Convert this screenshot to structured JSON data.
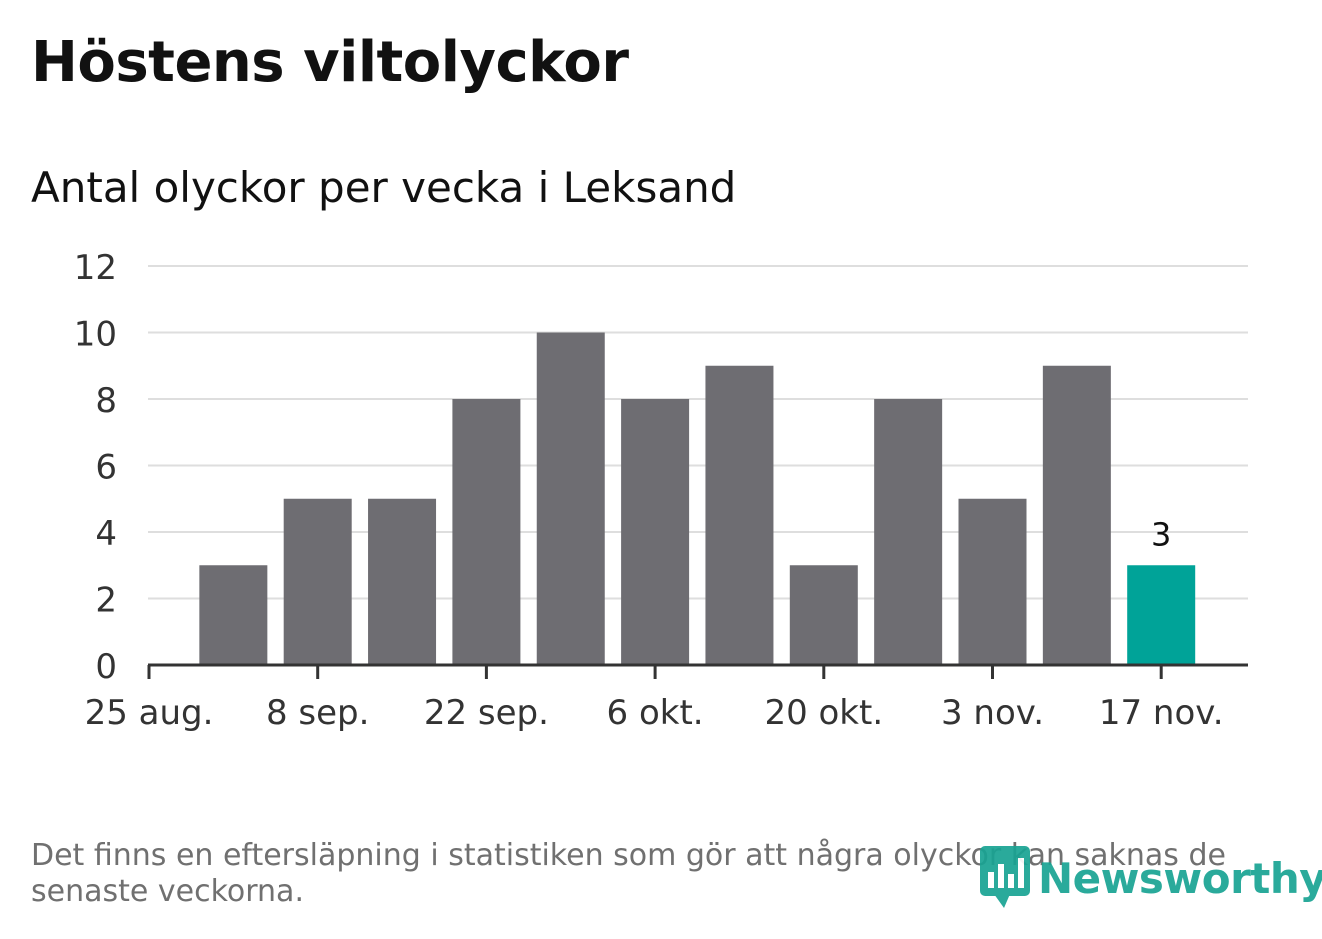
{
  "title": "Höstens viltolyckor",
  "subtitle": "Antal olyckor per vecka i Leksand",
  "footnote": "Det finns en eftersläpning i statistiken som gör att några olyckor kan saknas de senaste veckorna.",
  "brand": {
    "name": "Newsworthy",
    "icon": "bar-chart-speech-bubble-icon",
    "color": "#19a393"
  },
  "colors": {
    "bar": "#6e6d72",
    "highlight": "#00a398",
    "grid": "#dedede",
    "axis": "#333333"
  },
  "chart_data": {
    "type": "bar",
    "title": "Höstens viltolyckor",
    "subtitle": "Antal olyckor per vecka i Leksand",
    "xlabel": "",
    "ylabel": "",
    "ylim": [
      0,
      12
    ],
    "yticks": [
      0,
      2,
      4,
      6,
      8,
      10,
      12
    ],
    "x_tick_labels": [
      "25 aug.",
      "8 sep.",
      "22 sep.",
      "6 okt.",
      "20 okt.",
      "3 nov.",
      "17 nov."
    ],
    "values": [
      3,
      5,
      5,
      8,
      10,
      8,
      9,
      3,
      8,
      5,
      9,
      3
    ],
    "highlight_index": 11,
    "annotation": {
      "index": 11,
      "label": "3"
    },
    "grid": true,
    "legend": "none"
  }
}
